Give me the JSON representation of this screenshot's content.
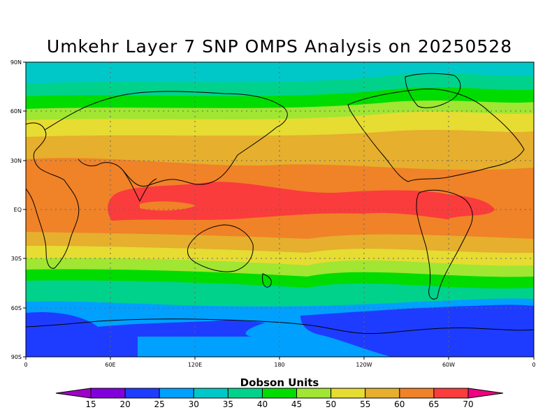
{
  "title": "Umkehr Layer 7 SNP OMPS Analysis on 20250528",
  "map": {
    "lat_labels": [
      "90N",
      "60N",
      "30N",
      "EQ",
      "30S",
      "60S",
      "90S"
    ],
    "lon_labels": [
      "0",
      "60E",
      "120E",
      "180",
      "120W",
      "60W",
      "0"
    ]
  },
  "legend": {
    "title": "Dobson Units",
    "levels": [
      "15",
      "20",
      "25",
      "30",
      "35",
      "40",
      "45",
      "50",
      "55",
      "60",
      "65",
      "70"
    ],
    "colors": [
      "#a000c8",
      "#8200dc",
      "#1e3cff",
      "#00a0ff",
      "#00c8c8",
      "#00d28c",
      "#00dc00",
      "#a0e632",
      "#e6dc32",
      "#e6af2d",
      "#f08228",
      "#fa3c3c",
      "#f00082"
    ]
  }
}
